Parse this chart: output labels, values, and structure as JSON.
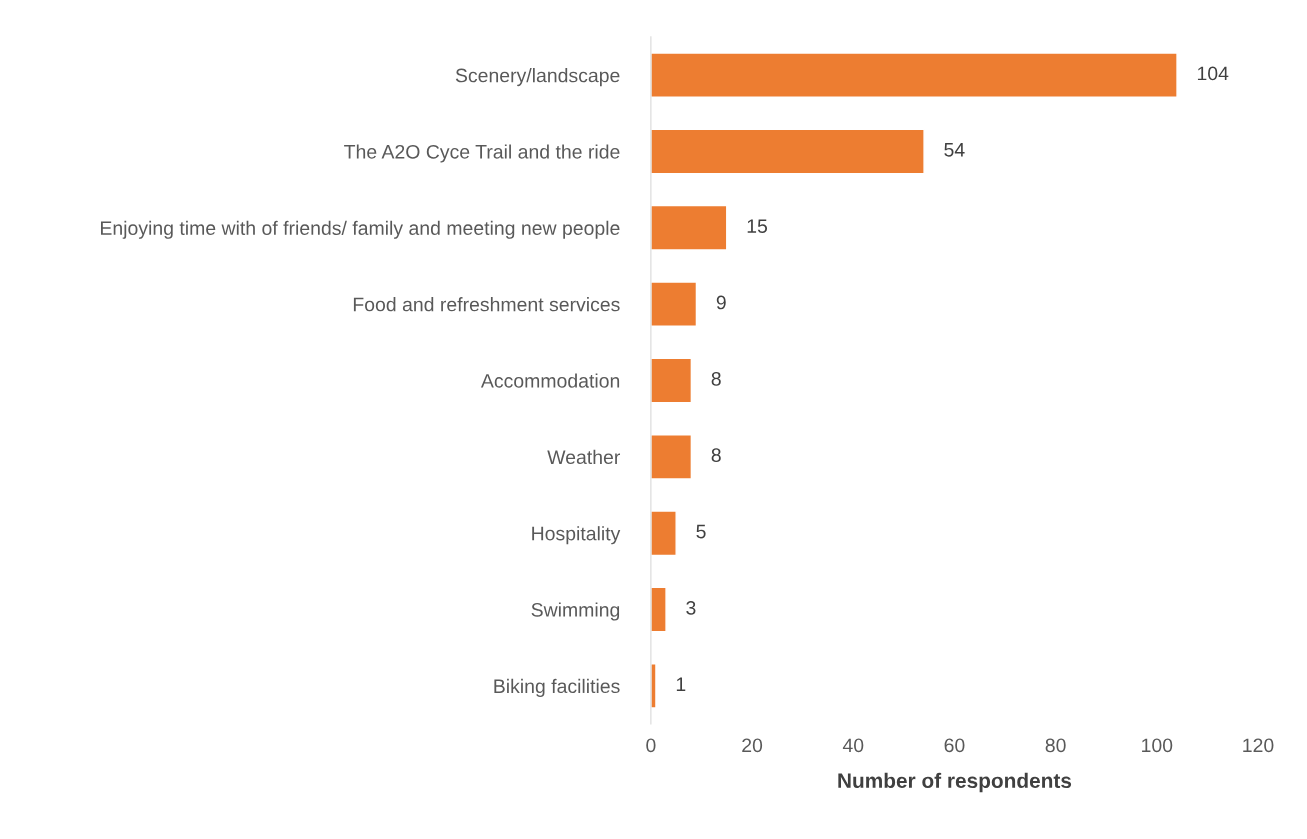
{
  "chart_data": {
    "type": "bar",
    "orientation": "horizontal",
    "xlabel": "Number of respondents",
    "categories": [
      "Scenery/landscape",
      "The A2O Cyce Trail and the ride",
      "Enjoying time with of friends/ family and meeting new people",
      "Food and refreshment services",
      "Accommodation",
      "Weather",
      "Hospitality",
      "Swimming",
      "Biking facilities"
    ],
    "values": [
      104,
      54,
      15,
      9,
      8,
      8,
      5,
      3,
      1
    ],
    "color": "#ed7d31",
    "xlim": [
      0,
      120
    ],
    "xticks": [
      0,
      20,
      40,
      60,
      80,
      100,
      120
    ],
    "grid": false,
    "data_labels": true
  }
}
